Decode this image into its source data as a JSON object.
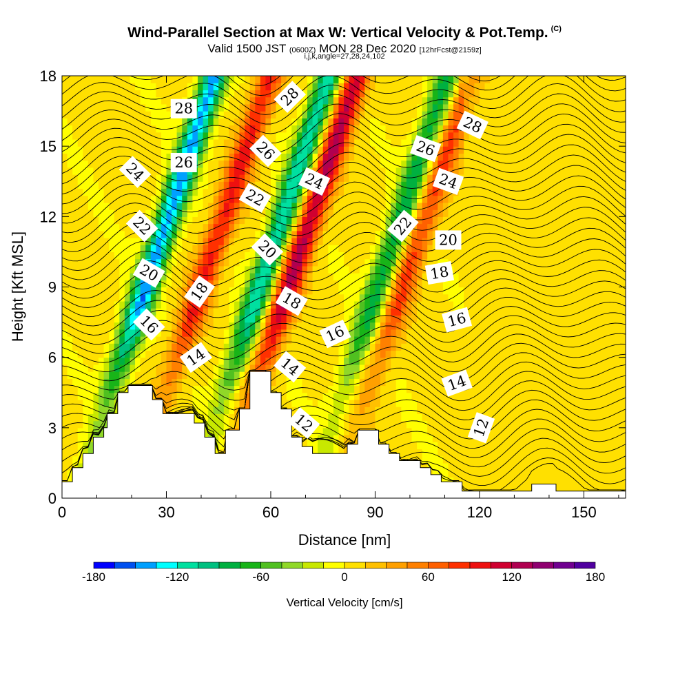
{
  "title_main": "Wind-Parallel Section at Max W: Vertical Velocity & Pot.Temp.",
  "title_mark": "(C)",
  "subtitle_a": "Valid 1500 JST",
  "subtitle_b": "(0600Z)",
  "subtitle_c": "MON 28 Dec 2020",
  "subtitle_d": "[12hrFcst@2159z]",
  "subtitle_line3": "i,j,k,angle=27,28,24,102",
  "chart_data": {
    "type": "heatmap",
    "xlabel": "Distance [nm]",
    "ylabel": "Height [Kft MSL]",
    "xlim": [
      0,
      162
    ],
    "ylim": [
      0,
      18
    ],
    "xticks": [
      0,
      30,
      60,
      90,
      120,
      150
    ],
    "yticks": [
      0,
      3,
      6,
      9,
      12,
      15,
      18
    ],
    "colorbar": {
      "label": "Vertical Velocity [cm/s]",
      "ticks": [
        -180,
        -120,
        -60,
        0,
        60,
        120,
        180
      ],
      "levels": [
        -180,
        -165,
        -150,
        -135,
        -120,
        -105,
        -90,
        -75,
        -60,
        -45,
        -30,
        -15,
        0,
        15,
        30,
        45,
        60,
        75,
        90,
        105,
        120,
        135,
        150,
        165,
        180
      ],
      "colors": [
        "#0000ff",
        "#0050f0",
        "#00a0ff",
        "#00ffff",
        "#00e0a0",
        "#00c080",
        "#00b040",
        "#18b418",
        "#50c020",
        "#90d828",
        "#c8e800",
        "#ffff00",
        "#ffe000",
        "#ffc000",
        "#ffa000",
        "#ff8000",
        "#ff6000",
        "#ff3000",
        "#ee1010",
        "#d00030",
        "#b00050",
        "#900070",
        "#700090",
        "#5000a0"
      ]
    },
    "updraft_columns": [
      {
        "x": 40,
        "value": 90
      },
      {
        "x": 65,
        "value": 120
      },
      {
        "x": 98,
        "value": 75
      }
    ],
    "downdraft_columns": [
      {
        "x": 24,
        "value": -150
      },
      {
        "x": 57,
        "value": -120
      },
      {
        "x": 91,
        "value": -90
      }
    ],
    "terrain_profile": [
      [
        0,
        0.7
      ],
      [
        3,
        0.7
      ],
      [
        3,
        1.3
      ],
      [
        6,
        1.3
      ],
      [
        6,
        1.9
      ],
      [
        9,
        1.9
      ],
      [
        9,
        2.6
      ],
      [
        12,
        2.6
      ],
      [
        12,
        3
      ],
      [
        13,
        3
      ],
      [
        13,
        3.6
      ],
      [
        16,
        3.6
      ],
      [
        16,
        4.5
      ],
      [
        19,
        4.5
      ],
      [
        19,
        4.8
      ],
      [
        26,
        4.8
      ],
      [
        26,
        4.2
      ],
      [
        29,
        4.2
      ],
      [
        29,
        3.6
      ],
      [
        38,
        3.6
      ],
      [
        38,
        3.2
      ],
      [
        41,
        3.2
      ],
      [
        41,
        2.6
      ],
      [
        44,
        2.6
      ],
      [
        44,
        1.9
      ],
      [
        47,
        1.9
      ],
      [
        47,
        2.9
      ],
      [
        51,
        2.9
      ],
      [
        51,
        3.8
      ],
      [
        54,
        3.8
      ],
      [
        54,
        5.4
      ],
      [
        60,
        5.4
      ],
      [
        60,
        4.5
      ],
      [
        63,
        4.5
      ],
      [
        63,
        3.8
      ],
      [
        66,
        3.8
      ],
      [
        66,
        2.6
      ],
      [
        69,
        2.6
      ],
      [
        69,
        2.2
      ],
      [
        72,
        2.2
      ],
      [
        72,
        1.9
      ],
      [
        82,
        1.9
      ],
      [
        82,
        2.3
      ],
      [
        85,
        2.3
      ],
      [
        85,
        2.9
      ],
      [
        91,
        2.9
      ],
      [
        91,
        2.3
      ],
      [
        94,
        2.3
      ],
      [
        94,
        1.9
      ],
      [
        97,
        1.9
      ],
      [
        97,
        1.6
      ],
      [
        103,
        1.6
      ],
      [
        103,
        1.3
      ],
      [
        106,
        1.3
      ],
      [
        106,
        1.0
      ],
      [
        109,
        1.0
      ],
      [
        109,
        0.7
      ],
      [
        115,
        0.7
      ],
      [
        115,
        0.3
      ],
      [
        135,
        0.3
      ],
      [
        135,
        0.6
      ],
      [
        142,
        0.6
      ],
      [
        142,
        0.3
      ],
      [
        162,
        0.3
      ]
    ],
    "theta_contours": {
      "interval": 1,
      "labels": [
        {
          "text": "28",
          "x": 35,
          "y": 16.6,
          "angle": 0
        },
        {
          "text": "26",
          "x": 35,
          "y": 14.3,
          "angle": 0
        },
        {
          "text": "24",
          "x": 21,
          "y": 13.9,
          "angle": 45
        },
        {
          "text": "22",
          "x": 23,
          "y": 11.6,
          "angle": 45
        },
        {
          "text": "20",
          "x": 25,
          "y": 9.6,
          "angle": 30
        },
        {
          "text": "18",
          "x": 39.5,
          "y": 8.8,
          "angle": -55
        },
        {
          "text": "16",
          "x": 25,
          "y": 7.4,
          "angle": 45
        },
        {
          "text": "14",
          "x": 38.5,
          "y": 6.0,
          "angle": -35
        },
        {
          "text": "28",
          "x": 65.5,
          "y": 17.1,
          "angle": -45
        },
        {
          "text": "26",
          "x": 58.5,
          "y": 14.8,
          "angle": 45
        },
        {
          "text": "22",
          "x": 55.5,
          "y": 12.8,
          "angle": 30
        },
        {
          "text": "20",
          "x": 59,
          "y": 10.6,
          "angle": 45
        },
        {
          "text": "18",
          "x": 66,
          "y": 8.4,
          "angle": 30
        },
        {
          "text": "24",
          "x": 72.5,
          "y": 13.5,
          "angle": 25
        },
        {
          "text": "16",
          "x": 78.5,
          "y": 7.0,
          "angle": -25
        },
        {
          "text": "14",
          "x": 65.5,
          "y": 5.6,
          "angle": 40
        },
        {
          "text": "12",
          "x": 69.5,
          "y": 3.2,
          "angle": 40
        },
        {
          "text": "28",
          "x": 118,
          "y": 15.9,
          "angle": 25
        },
        {
          "text": "26",
          "x": 104.5,
          "y": 14.9,
          "angle": 20
        },
        {
          "text": "24",
          "x": 111,
          "y": 13.5,
          "angle": 20
        },
        {
          "text": "22",
          "x": 98,
          "y": 11.6,
          "angle": -50
        },
        {
          "text": "20",
          "x": 111,
          "y": 11.0,
          "angle": 0
        },
        {
          "text": "18",
          "x": 108.5,
          "y": 9.6,
          "angle": -10
        },
        {
          "text": "16",
          "x": 113.5,
          "y": 7.6,
          "angle": -15
        },
        {
          "text": "14",
          "x": 113.5,
          "y": 4.9,
          "angle": -20
        },
        {
          "text": "12",
          "x": 120.5,
          "y": 3.0,
          "angle": -70
        }
      ]
    }
  }
}
